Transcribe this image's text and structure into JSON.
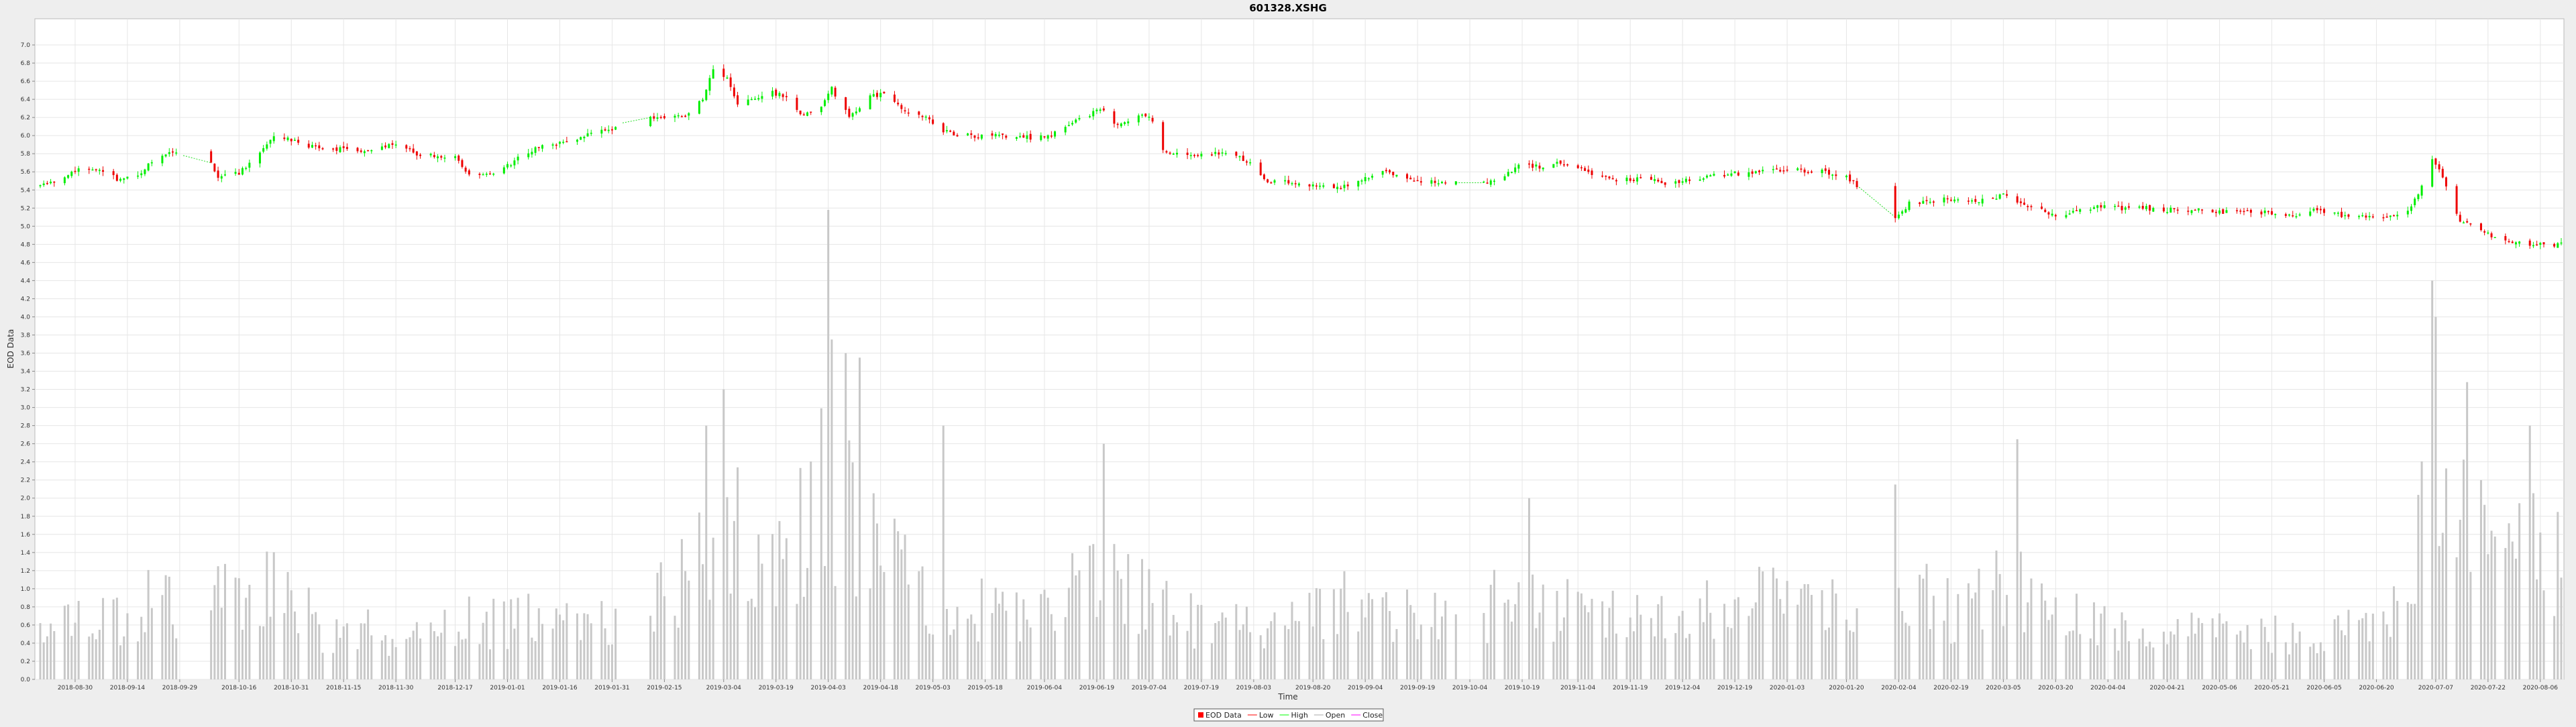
{
  "chart_data": {
    "type": "candlestick",
    "title": "601328.XSHG",
    "xlabel": "Time",
    "ylabel": "EOD Data",
    "ylim": [
      0.0,
      7.2
    ],
    "y_ticks": [
      "0.0",
      "0.2",
      "0.4",
      "0.6",
      "0.8",
      "1.0",
      "1.2",
      "1.4",
      "1.6",
      "1.8",
      "2.0",
      "2.2",
      "2.4",
      "2.6",
      "2.8",
      "3.0",
      "3.2",
      "3.4",
      "3.6",
      "3.8",
      "4.0",
      "4.2",
      "4.4",
      "4.6",
      "4.8",
      "5.0",
      "5.2",
      "5.4",
      "5.6",
      "5.8",
      "6.0",
      "6.2",
      "6.4",
      "6.6",
      "6.8",
      "7.0"
    ],
    "x_ticks": [
      "2018-08-30",
      "2018-09-14",
      "2018-09-29",
      "2018-10-16",
      "2018-10-31",
      "2018-11-15",
      "2018-11-30",
      "2018-12-17",
      "2019-01-01",
      "2019-01-16",
      "2019-01-31",
      "2019-02-15",
      "2019-03-04",
      "2019-03-19",
      "2019-04-03",
      "2019-04-18",
      "2019-05-03",
      "2019-05-18",
      "2019-06-04",
      "2019-06-19",
      "2019-07-04",
      "2019-07-19",
      "2019-08-03",
      "2019-08-20",
      "2019-09-04",
      "2019-09-19",
      "2019-10-04",
      "2019-10-19",
      "2019-11-04",
      "2019-11-19",
      "2019-12-04",
      "2019-12-19",
      "2020-01-03",
      "2020-01-20",
      "2020-02-04",
      "2020-02-19",
      "2020-03-05",
      "2020-03-20",
      "2020-04-04",
      "2020-04-21",
      "2020-05-06",
      "2020-05-21",
      "2020-06-05",
      "2020-06-20",
      "2020-07-07",
      "2020-07-22",
      "2020-08-06"
    ],
    "grid": true,
    "legend_position": "bottom-center",
    "legend": [
      {
        "label": "EOD Data",
        "color": "#ff0000",
        "kind": "box"
      },
      {
        "label": "Low",
        "color": "#ff0000",
        "kind": "line"
      },
      {
        "label": "High",
        "color": "#00ff00",
        "kind": "line"
      },
      {
        "label": "Open",
        "color": "#aaaaaa",
        "kind": "line"
      },
      {
        "label": "Close",
        "color": "#ff00ff",
        "kind": "line"
      }
    ],
    "colors": {
      "up": "#00ee00",
      "down": "#ee0000",
      "volume": "#c8c8c8",
      "gap_line": "#22dd22",
      "plot_bg": "#ffffff",
      "grid": "#e6e6e6",
      "page_bg": "#eeeeee"
    },
    "close_anchors": [
      [
        "2018-08-20",
        5.45
      ],
      [
        "2018-08-27",
        5.55
      ],
      [
        "2018-08-31",
        5.62
      ],
      [
        "2018-09-07",
        5.6
      ],
      [
        "2018-09-12",
        5.5
      ],
      [
        "2018-09-18",
        5.58
      ],
      [
        "2018-09-21",
        5.72
      ],
      [
        "2018-09-26",
        5.82
      ],
      [
        "2018-10-08",
        5.7
      ],
      [
        "2018-10-10",
        5.55
      ],
      [
        "2018-10-16",
        5.58
      ],
      [
        "2018-10-22",
        5.82
      ],
      [
        "2018-10-26",
        6.0
      ],
      [
        "2018-10-31",
        5.95
      ],
      [
        "2018-11-05",
        5.88
      ],
      [
        "2018-11-15",
        5.85
      ],
      [
        "2018-11-22",
        5.82
      ],
      [
        "2018-11-30",
        5.92
      ],
      [
        "2018-12-06",
        5.8
      ],
      [
        "2018-12-17",
        5.75
      ],
      [
        "2018-12-21",
        5.58
      ],
      [
        "2018-12-27",
        5.55
      ],
      [
        "2019-01-03",
        5.72
      ],
      [
        "2019-01-10",
        5.88
      ],
      [
        "2019-01-16",
        5.92
      ],
      [
        "2019-01-24",
        6.0
      ],
      [
        "2019-01-31",
        6.08
      ],
      [
        "2019-02-06",
        6.2
      ],
      [
        "2019-02-15",
        6.2
      ],
      [
        "2019-02-21",
        6.2
      ],
      [
        "2019-02-26",
        6.42
      ],
      [
        "2019-03-01",
        6.72
      ],
      [
        "2019-03-05",
        6.65
      ],
      [
        "2019-03-08",
        6.35
      ],
      [
        "2019-03-13",
        6.4
      ],
      [
        "2019-03-18",
        6.48
      ],
      [
        "2019-03-22",
        6.42
      ],
      [
        "2019-03-26",
        6.22
      ],
      [
        "2019-04-01",
        6.3
      ],
      [
        "2019-04-04",
        6.52
      ],
      [
        "2019-04-09",
        6.2
      ],
      [
        "2019-04-15",
        6.45
      ],
      [
        "2019-04-19",
        6.45
      ],
      [
        "2019-04-24",
        6.3
      ],
      [
        "2019-04-30",
        6.22
      ],
      [
        "2019-05-06",
        6.05
      ],
      [
        "2019-05-10",
        6.0
      ],
      [
        "2019-05-20",
        6.0
      ],
      [
        "2019-05-31",
        5.98
      ],
      [
        "2019-06-05",
        6.0
      ],
      [
        "2019-06-11",
        6.12
      ],
      [
        "2019-06-18",
        6.25
      ],
      [
        "2019-06-21",
        6.3
      ],
      [
        "2019-06-25",
        6.1
      ],
      [
        "2019-07-01",
        6.22
      ],
      [
        "2019-07-05",
        6.18
      ],
      [
        "2019-07-08",
        5.82
      ],
      [
        "2019-07-15",
        5.78
      ],
      [
        "2019-07-22",
        5.8
      ],
      [
        "2019-07-29",
        5.78
      ],
      [
        "2019-08-02",
        5.7
      ],
      [
        "2019-08-06",
        5.5
      ],
      [
        "2019-08-13",
        5.48
      ],
      [
        "2019-08-20",
        5.45
      ],
      [
        "2019-08-27",
        5.42
      ],
      [
        "2019-09-04",
        5.52
      ],
      [
        "2019-09-09",
        5.6
      ],
      [
        "2019-09-16",
        5.52
      ],
      [
        "2019-09-20",
        5.5
      ],
      [
        "2019-09-27",
        5.48
      ],
      [
        "2019-10-09",
        5.48
      ],
      [
        "2019-10-15",
        5.58
      ],
      [
        "2019-10-18",
        5.7
      ],
      [
        "2019-10-24",
        5.65
      ],
      [
        "2019-10-30",
        5.7
      ],
      [
        "2019-11-04",
        5.65
      ],
      [
        "2019-11-08",
        5.55
      ],
      [
        "2019-11-15",
        5.52
      ],
      [
        "2019-11-22",
        5.52
      ],
      [
        "2019-11-29",
        5.48
      ],
      [
        "2019-12-05",
        5.5
      ],
      [
        "2019-12-12",
        5.55
      ],
      [
        "2019-12-18",
        5.58
      ],
      [
        "2019-12-24",
        5.58
      ],
      [
        "2019-12-31",
        5.63
      ],
      [
        "2020-01-07",
        5.62
      ],
      [
        "2020-01-14",
        5.6
      ],
      [
        "2020-01-20",
        5.55
      ],
      [
        "2020-01-23",
        5.45
      ],
      [
        "2020-02-03",
        5.1
      ],
      [
        "2020-02-07",
        5.25
      ],
      [
        "2020-02-14",
        5.28
      ],
      [
        "2020-02-21",
        5.32
      ],
      [
        "2020-02-28",
        5.28
      ],
      [
        "2020-03-05",
        5.35
      ],
      [
        "2020-03-10",
        5.25
      ],
      [
        "2020-03-16",
        5.2
      ],
      [
        "2020-03-20",
        5.1
      ],
      [
        "2020-03-26",
        5.18
      ],
      [
        "2020-04-01",
        5.22
      ],
      [
        "2020-04-08",
        5.2
      ],
      [
        "2020-04-15",
        5.2
      ],
      [
        "2020-04-21",
        5.18
      ],
      [
        "2020-04-29",
        5.18
      ],
      [
        "2020-05-11",
        5.15
      ],
      [
        "2020-05-20",
        5.15
      ],
      [
        "2020-05-28",
        5.12
      ],
      [
        "2020-06-03",
        5.18
      ],
      [
        "2020-06-10",
        5.12
      ],
      [
        "2020-06-17",
        5.1
      ],
      [
        "2020-06-24",
        5.12
      ],
      [
        "2020-06-30",
        5.2
      ],
      [
        "2020-07-03",
        5.45
      ],
      [
        "2020-07-06",
        5.75
      ],
      [
        "2020-07-09",
        5.55
      ],
      [
        "2020-07-14",
        5.05
      ],
      [
        "2020-07-20",
        4.95
      ],
      [
        "2020-07-24",
        4.88
      ],
      [
        "2020-07-30",
        4.82
      ],
      [
        "2020-08-05",
        4.8
      ],
      [
        "2020-08-10",
        4.8
      ],
      [
        "2020-08-12",
        4.8
      ]
    ],
    "volume_anchors": [
      [
        "2018-08-20",
        0.55
      ],
      [
        "2018-09-05",
        0.7
      ],
      [
        "2018-09-20",
        0.9
      ],
      [
        "2018-10-10",
        1.0
      ],
      [
        "2018-10-25",
        1.1
      ],
      [
        "2018-11-10",
        0.6
      ],
      [
        "2018-12-01",
        0.55
      ],
      [
        "2018-12-20",
        0.75
      ],
      [
        "2019-01-15",
        0.7
      ],
      [
        "2019-02-01",
        0.7
      ],
      [
        "2019-02-22",
        1.2
      ],
      [
        "2019-03-04",
        2.0
      ],
      [
        "2019-03-20",
        1.3
      ],
      [
        "2019-04-02",
        2.4
      ],
      [
        "2019-04-10",
        2.0
      ],
      [
        "2019-04-25",
        1.2
      ],
      [
        "2019-05-10",
        0.95
      ],
      [
        "2019-06-01",
        0.85
      ],
      [
        "2019-06-20",
        1.2
      ],
      [
        "2019-07-10",
        0.85
      ],
      [
        "2019-07-25",
        0.6
      ],
      [
        "2019-08-15",
        0.7
      ],
      [
        "2019-09-01",
        0.95
      ],
      [
        "2019-09-20",
        0.7
      ],
      [
        "2019-10-15",
        0.95
      ],
      [
        "2019-11-10",
        0.75
      ],
      [
        "2019-12-01",
        0.7
      ],
      [
        "2019-12-20",
        0.95
      ],
      [
        "2020-01-08",
        1.0
      ],
      [
        "2020-01-22",
        0.7
      ],
      [
        "2020-02-04",
        1.2
      ],
      [
        "2020-02-20",
        0.85
      ],
      [
        "2020-03-05",
        1.3
      ],
      [
        "2020-03-20",
        0.8
      ],
      [
        "2020-04-10",
        0.55
      ],
      [
        "2020-05-01",
        0.55
      ],
      [
        "2020-05-25",
        0.55
      ],
      [
        "2020-06-15",
        0.6
      ],
      [
        "2020-06-30",
        1.1
      ],
      [
        "2020-07-07",
        3.0
      ],
      [
        "2020-07-15",
        1.8
      ],
      [
        "2020-08-01",
        1.7
      ],
      [
        "2020-08-12",
        1.5
      ]
    ],
    "volume_peaks": [
      [
        "2019-02-27",
        2.8
      ],
      [
        "2019-03-04",
        3.2
      ],
      [
        "2019-04-03",
        5.18
      ],
      [
        "2019-04-04",
        3.75
      ],
      [
        "2019-04-08",
        3.6
      ],
      [
        "2019-04-12",
        3.55
      ],
      [
        "2019-05-06",
        2.8
      ],
      [
        "2019-06-21",
        2.6
      ],
      [
        "2019-10-21",
        2.0
      ],
      [
        "2020-02-03",
        2.15
      ],
      [
        "2020-03-09",
        2.65
      ],
      [
        "2020-07-06",
        4.4
      ],
      [
        "2020-07-07",
        4.0
      ],
      [
        "2020-07-16",
        3.28
      ],
      [
        "2020-08-03",
        2.8
      ]
    ],
    "gaps": [
      [
        "2018-10-01",
        "2018-10-07"
      ],
      [
        "2019-02-04",
        "2019-02-10"
      ],
      [
        "2019-10-01",
        "2019-10-07"
      ],
      [
        "2020-01-24",
        "2020-02-02"
      ]
    ]
  }
}
